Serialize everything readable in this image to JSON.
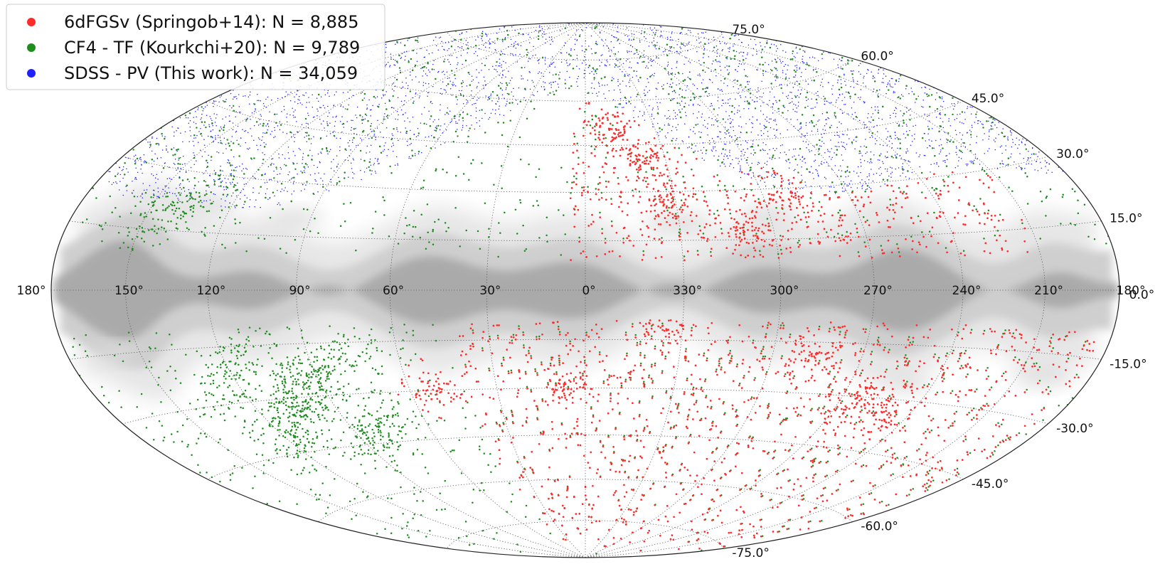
{
  "chart_data": {
    "type": "scatter",
    "projection": "aitoff-hammer all-sky, galactic coordinates",
    "title": "",
    "xlabel": "",
    "ylabel": "",
    "grid": true,
    "legend_position": "top-left",
    "background": "grey Milky Way extinction band along b = 0",
    "longitude_ticks": [
      "180°",
      "150°",
      "120°",
      "90°",
      "60°",
      "30°",
      "0°",
      "330°",
      "300°",
      "270°",
      "240°",
      "210°",
      "180°"
    ],
    "longitude_tick_values": [
      180,
      150,
      120,
      90,
      60,
      30,
      0,
      330,
      300,
      270,
      240,
      210,
      180
    ],
    "latitude_ticks": [
      "75.0°",
      "60.0°",
      "45.0°",
      "30.0°",
      "15.0°",
      "0.0°",
      "-15.0°",
      "-30.0°",
      "-45.0°",
      "-60.0°",
      "-75.0°"
    ],
    "latitude_tick_values": [
      75,
      60,
      45,
      30,
      15,
      0,
      -15,
      -30,
      -45,
      -60,
      -75
    ],
    "series": [
      {
        "name": "6dFGSv (Springob+14): N = 8,885",
        "color": "#ff2a2a",
        "count": 8885,
        "coverage": "southern equatorial sky (Dec < 0), galactic plane avoided",
        "clusters": [
          {
            "l": 338,
            "b": 40,
            "note": "dense clump"
          },
          {
            "l": 333,
            "b": 28
          },
          {
            "l": 292,
            "b": 28
          },
          {
            "l": 308,
            "b": 18
          },
          {
            "l": 348,
            "b": 50
          },
          {
            "l": 335,
            "b": -10
          },
          {
            "l": 5,
            "b": -30
          },
          {
            "l": 52,
            "b": -30
          },
          {
            "l": 285,
            "b": -20
          },
          {
            "l": 250,
            "b": -35
          },
          {
            "l": 265,
            "b": -30
          }
        ]
      },
      {
        "name": "CF4 - TF (Kourkchi+20): N = 9,789",
        "color": "#1e8c1e",
        "count": 9789,
        "coverage": "whole sky outside the galactic plane",
        "clusters": [
          {
            "l": 100,
            "b": -30,
            "note": "dense band"
          },
          {
            "l": 120,
            "b": -22
          },
          {
            "l": 80,
            "b": -40
          },
          {
            "l": 140,
            "b": 20
          }
        ]
      },
      {
        "name": "SDSS - PV (This work): N = 34,059",
        "color": "#1f1fff",
        "count": 34059,
        "coverage": "northern galactic cap, b > ~30°, l 180°–220° through 0°",
        "clusters": []
      }
    ]
  }
}
